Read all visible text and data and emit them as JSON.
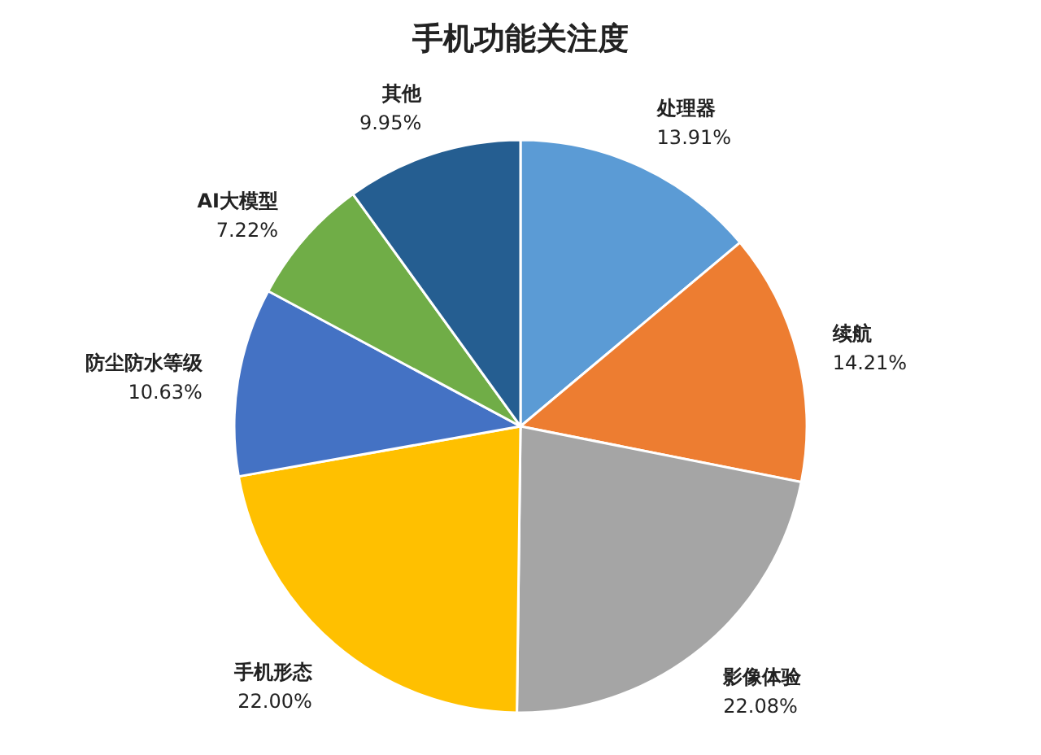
{
  "chart_data": {
    "type": "pie",
    "title": "手机功能关注度",
    "categories": [
      "处理器",
      "续航",
      "影像体验",
      "手机形态",
      "防尘防水等级",
      "AI大模型",
      "其他"
    ],
    "values": [
      13.91,
      14.21,
      22.08,
      22.0,
      10.63,
      7.22,
      9.95
    ],
    "colors": [
      "#5b9bd5",
      "#ed7d31",
      "#a5a5a5",
      "#ffc000",
      "#4472c4",
      "#70ad47",
      "#255e91"
    ],
    "value_labels": [
      "13.91%",
      "14.21%",
      "22.08%",
      "22.00%",
      "10.63%",
      "7.22%",
      "9.95%"
    ]
  }
}
